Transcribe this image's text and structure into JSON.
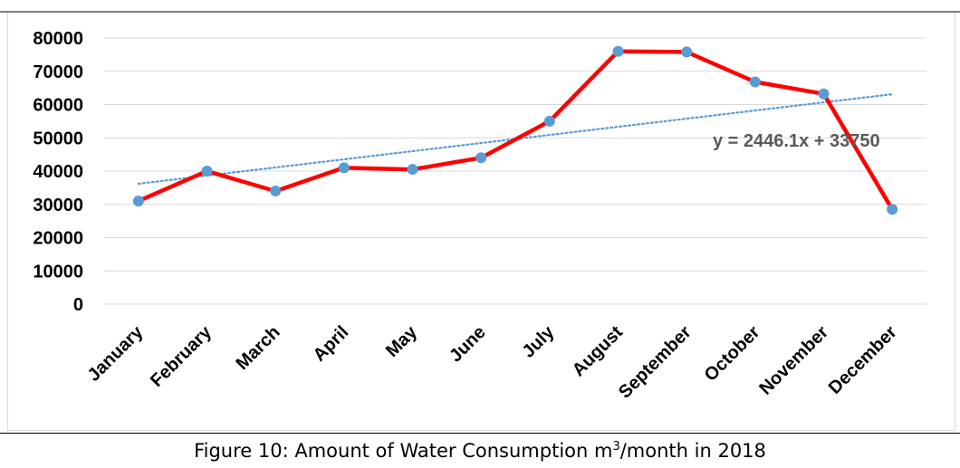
{
  "chart_data": {
    "type": "line",
    "title": "",
    "xlabel": "",
    "ylabel": "",
    "categories": [
      "January",
      "February",
      "March",
      "April",
      "May",
      "June",
      "July",
      "August",
      "September",
      "October",
      "November",
      "December"
    ],
    "series": [
      {
        "values": [
          31000,
          40000,
          34000,
          41000,
          40500,
          44000,
          55000,
          76000,
          75800,
          66800,
          63200,
          28500
        ],
        "color": "#ff0000",
        "marker_color": "#5b9bd5"
      }
    ],
    "trendline": {
      "type": "linear",
      "equation": "y = 2446.1x + 33750",
      "slope": 2446.1,
      "intercept": 33750,
      "style": "dotted",
      "color": "#5b9bd5"
    },
    "ylim": [
      0,
      80000
    ],
    "yticks": [
      0,
      10000,
      20000,
      30000,
      40000,
      50000,
      60000,
      70000,
      80000
    ],
    "grid": true,
    "legend": "none"
  },
  "caption": {
    "text_before": "Figure 10: Amount of Water Consumption m",
    "superscript": "3",
    "text_after": "/month in 2018"
  }
}
